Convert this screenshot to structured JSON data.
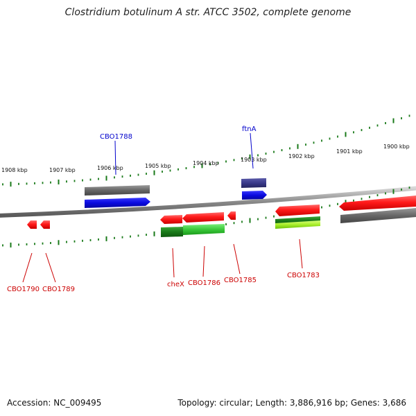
{
  "title": "Clostridium botulinum A str. ATCC 3502, complete genome",
  "footer": {
    "accession": "Accession: NC_009495",
    "summary": "Topology: circular; Length: 3,886,916 bp; Genes: 3,686"
  },
  "colors": {
    "backbone": "#8a8a8a",
    "tick": "#1a7a1a",
    "forward_label": "#0000cc",
    "reverse_label": "#cc0000",
    "gene_red": "#ff1a1a",
    "gene_blue": "#0a0ae0",
    "gene_gray": "#666666",
    "gene_green": "#2a9a2a",
    "gene_navy": "#3a3a8a",
    "gene_lime": "#8ee01a"
  },
  "scale_labels": [
    "1908 kbp",
    "1907 kbp",
    "1906 kbp",
    "1905 kbp",
    "1904 kbp",
    "1903 kbp",
    "1902 kbp",
    "1901 kbp",
    "1900 kbp"
  ],
  "forward_labels": [
    "CBO1788",
    "ftnA"
  ],
  "reverse_labels": [
    "CBO1790",
    "CBO1789",
    "cheX",
    "CBO1786",
    "CBO1785",
    "CBO1783"
  ]
}
